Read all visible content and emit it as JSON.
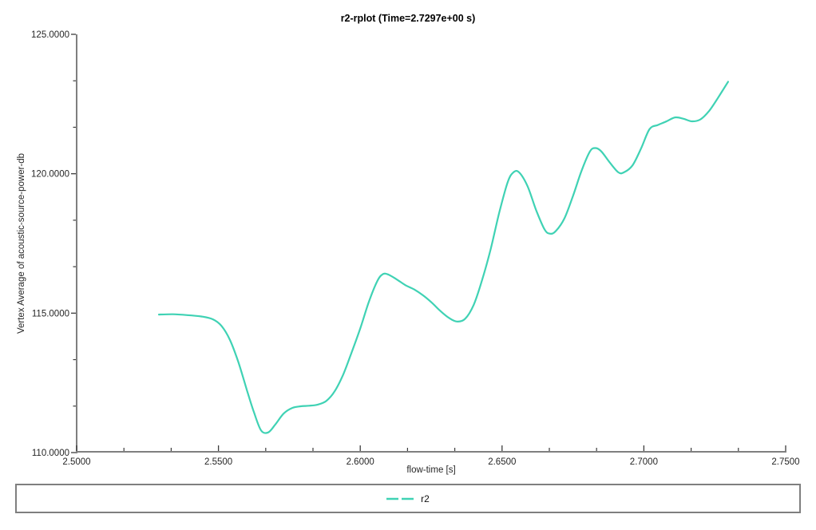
{
  "window": {
    "background": "#ffffff"
  },
  "header": {
    "title": "r2-rplot (Time=2.7297e+00 s)"
  },
  "axes": {
    "x_title": "flow-time [s]",
    "y_title": "Vertex Average of acoustic-source-power-db"
  },
  "legend": {
    "position": "bottom",
    "entries": [
      {
        "label": "r2",
        "color": "#3fd2b4",
        "dash": true
      }
    ]
  },
  "colors": {
    "series": "#3fd2b4",
    "axis_line": "#7f7f7f",
    "tick_mark": "#3c3c3c",
    "tick_text": "#262626"
  },
  "chart_data": {
    "type": "line",
    "title": "r2-rplot (Time=2.7297e+00 s)",
    "xlabel": "flow-time [s]",
    "ylabel": "Vertex Average of acoustic-source-power-db",
    "xlim": [
      2.5,
      2.75
    ],
    "ylim": [
      110,
      125
    ],
    "grid": false,
    "legend_position": "bottom",
    "x_major_ticks": [
      {
        "value": 2.5,
        "label": "2.5000"
      },
      {
        "value": 2.55,
        "label": "2.5500"
      },
      {
        "value": 2.6,
        "label": "2.6000"
      },
      {
        "value": 2.65,
        "label": "2.6500"
      },
      {
        "value": 2.7,
        "label": "2.7000"
      },
      {
        "value": 2.75,
        "label": "2.7500"
      }
    ],
    "x_minor_ticks": [
      2.51667,
      2.53333,
      2.56667,
      2.58333,
      2.61667,
      2.63333,
      2.66667,
      2.68333,
      2.71667,
      2.73333
    ],
    "y_major_ticks": [
      {
        "value": 110,
        "label": "110.0000"
      },
      {
        "value": 115,
        "label": "115.0000"
      },
      {
        "value": 120,
        "label": "120.0000"
      },
      {
        "value": 125,
        "label": "125.0000"
      }
    ],
    "y_minor_ticks": [
      111.6667,
      113.3333,
      116.6667,
      118.3333,
      121.6667,
      123.3333
    ],
    "series": [
      {
        "name": "r2",
        "color": "#3fd2b4",
        "x": [
          2.529,
          2.534,
          2.539,
          2.544,
          2.548,
          2.551,
          2.554,
          2.557,
          2.56,
          2.5625,
          2.565,
          2.5675,
          2.57,
          2.573,
          2.576,
          2.579,
          2.582,
          2.585,
          2.588,
          2.591,
          2.594,
          2.597,
          2.6,
          2.603,
          2.606,
          2.608,
          2.61,
          2.613,
          2.616,
          2.619,
          2.622,
          2.625,
          2.628,
          2.631,
          2.634,
          2.637,
          2.64,
          2.643,
          2.646,
          2.649,
          2.652,
          2.654,
          2.656,
          2.659,
          2.662,
          2.665,
          2.667,
          2.669,
          2.672,
          2.675,
          2.678,
          2.681,
          2.683,
          2.685,
          2.688,
          2.691,
          2.693,
          2.696,
          2.699,
          2.702,
          2.705,
          2.708,
          2.711,
          2.714,
          2.717,
          2.72,
          2.723,
          2.726,
          2.7297
        ],
        "y": [
          114.95,
          114.96,
          114.93,
          114.88,
          114.78,
          114.55,
          114.05,
          113.25,
          112.25,
          111.45,
          110.8,
          110.72,
          111.0,
          111.4,
          111.6,
          111.66,
          111.68,
          111.72,
          111.85,
          112.2,
          112.8,
          113.6,
          114.45,
          115.4,
          116.15,
          116.4,
          116.38,
          116.2,
          116.0,
          115.85,
          115.65,
          115.4,
          115.1,
          114.85,
          114.7,
          114.8,
          115.3,
          116.2,
          117.3,
          118.6,
          119.7,
          120.05,
          120.05,
          119.55,
          118.7,
          118.0,
          117.85,
          117.95,
          118.4,
          119.2,
          120.1,
          120.8,
          120.92,
          120.8,
          120.4,
          120.05,
          120.05,
          120.3,
          120.9,
          121.6,
          121.75,
          121.88,
          122.02,
          121.97,
          121.88,
          121.95,
          122.25,
          122.7,
          123.3
        ]
      }
    ]
  }
}
